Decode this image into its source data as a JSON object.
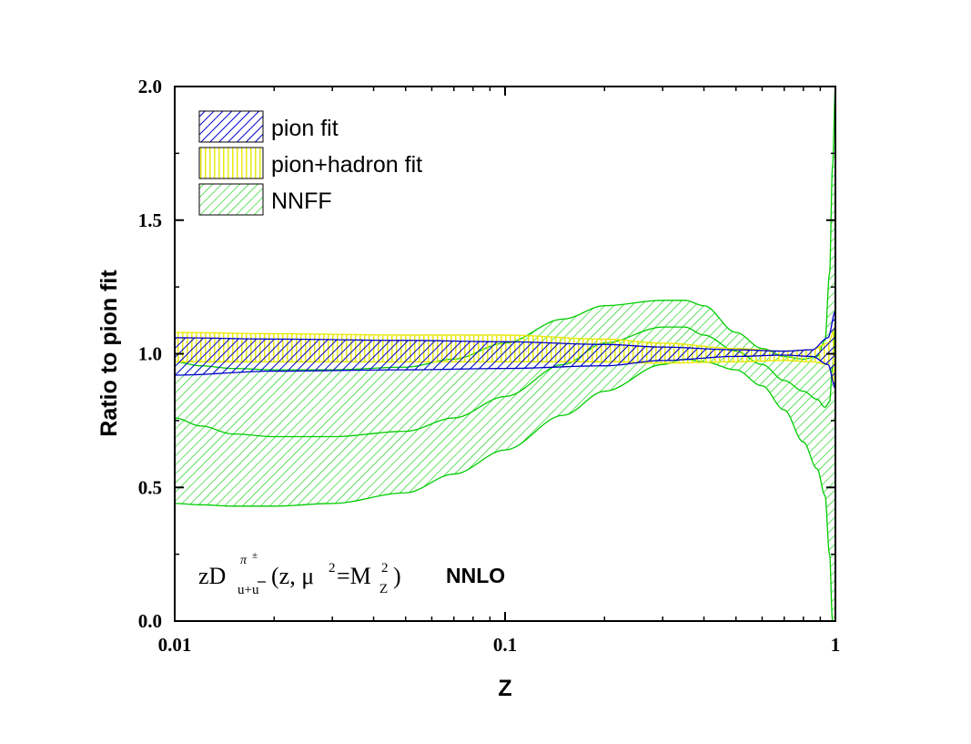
{
  "chart_data": {
    "type": "area",
    "xscale": "log",
    "xlim": [
      0.01,
      1
    ],
    "ylim": [
      0.0,
      2.0
    ],
    "xlabel": "Z",
    "ylabel": "Ratio to pion fit",
    "xticks": [
      0.01,
      0.1,
      1
    ],
    "xtick_labels": [
      "0.01",
      "0.1",
      "1"
    ],
    "yticks": [
      0.0,
      0.5,
      1.0,
      1.5,
      2.0
    ],
    "ytick_labels": [
      "0.0",
      "0.5",
      "1.0",
      "1.5",
      "2.0"
    ],
    "grid": false,
    "legend_position": "top-left",
    "annotations": {
      "formula": {
        "z_d": "zD",
        "sup": "π",
        "sup2": "±",
        "sub": "u+u",
        "sub_bar": "̄",
        "args": "(z, μ",
        "sq": "2",
        "eq_m": "=M",
        "sq2": "2",
        "sub_z": "Z",
        "close": ")"
      },
      "order": "NNLO"
    },
    "series": [
      {
        "name": "pion fit",
        "color": "#0000cc",
        "fill_pattern": "diagonal-dense",
        "x": [
          0.01,
          0.02,
          0.05,
          0.1,
          0.2,
          0.3,
          0.5,
          0.7,
          0.85,
          0.95,
          1.0
        ],
        "upper": [
          1.06,
          1.055,
          1.05,
          1.045,
          1.035,
          1.025,
          1.015,
          1.01,
          1.015,
          1.06,
          1.16
        ],
        "lower": [
          0.92,
          0.935,
          0.94,
          0.945,
          0.955,
          0.975,
          0.99,
          0.995,
          0.99,
          0.96,
          0.87
        ]
      },
      {
        "name": "pion+hadron fit",
        "color": "#e8e800",
        "fill_pattern": "vertical",
        "x": [
          0.01,
          0.02,
          0.05,
          0.1,
          0.2,
          0.3,
          0.5,
          0.7,
          0.85,
          0.95,
          1.0
        ],
        "upper": [
          1.08,
          1.075,
          1.07,
          1.07,
          1.055,
          1.04,
          1.02,
          1.01,
          1.015,
          1.04,
          1.1
        ],
        "lower": [
          0.97,
          0.97,
          0.97,
          0.97,
          0.97,
          0.965,
          0.97,
          0.975,
          0.97,
          0.96,
          0.88
        ]
      },
      {
        "name": "NNFF",
        "color": "#00cc00",
        "fill_pattern": "diagonal",
        "x": [
          0.01,
          0.012,
          0.015,
          0.02,
          0.03,
          0.05,
          0.07,
          0.1,
          0.15,
          0.2,
          0.3,
          0.35,
          0.4,
          0.5,
          0.6,
          0.7,
          0.8,
          0.88,
          0.93,
          0.96,
          0.98,
          1.0
        ],
        "upper": [
          0.97,
          0.955,
          0.945,
          0.94,
          0.94,
          0.95,
          0.98,
          1.04,
          1.13,
          1.18,
          1.2,
          1.2,
          1.18,
          1.08,
          1.02,
          0.99,
          0.98,
          0.99,
          1.05,
          1.3,
          1.7,
          2.0
        ],
        "lower": [
          0.44,
          0.435,
          0.43,
          0.43,
          0.44,
          0.48,
          0.55,
          0.64,
          0.77,
          0.86,
          0.96,
          0.98,
          0.97,
          0.94,
          0.88,
          0.79,
          0.67,
          0.57,
          0.47,
          0.25,
          0.0,
          0.0
        ],
        "central": [
          0.76,
          0.73,
          0.7,
          0.69,
          0.69,
          0.71,
          0.76,
          0.84,
          0.96,
          1.04,
          1.1,
          1.1,
          1.07,
          1.01,
          0.96,
          0.9,
          0.86,
          0.83,
          0.8,
          0.82,
          0.95,
          1.1
        ]
      }
    ]
  }
}
